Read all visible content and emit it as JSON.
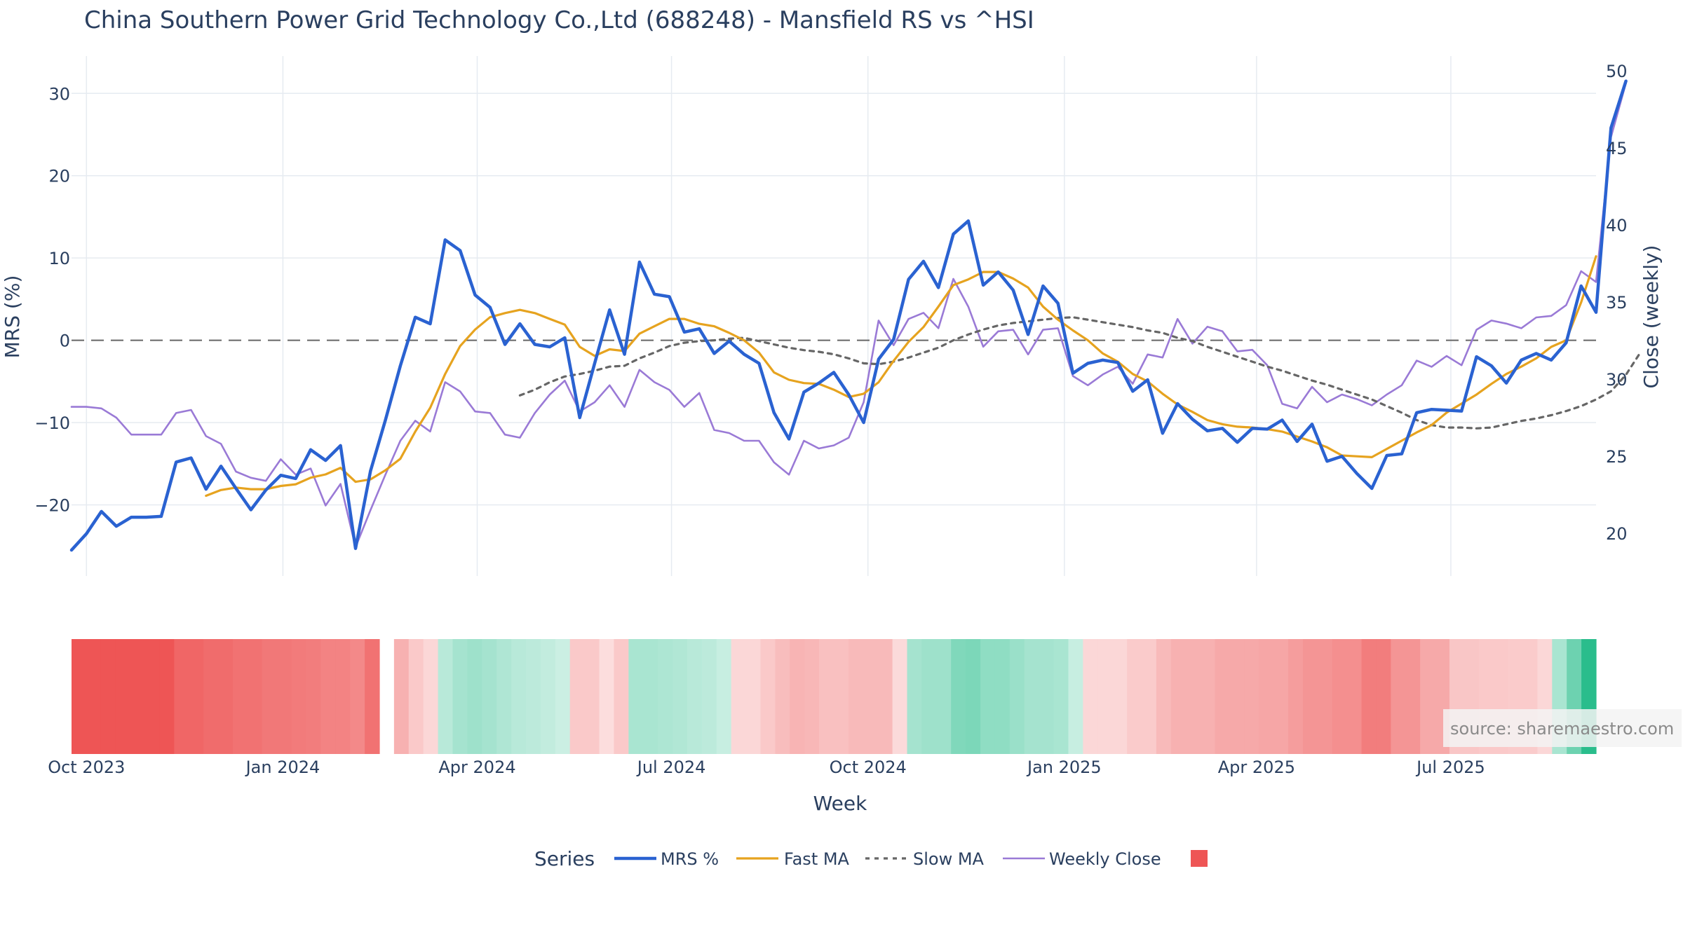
{
  "title": "China Southern Power Grid Technology Co.,Ltd (688248) - Mansfield RS vs ^HSI",
  "source_text": "source: sharemaestro.com",
  "colors": {
    "mrs": "#2a62d1",
    "fast": "#e6a31f",
    "slow": "#666666",
    "close": "#9a7ad6",
    "zero": "#666666",
    "grid": "#e6ebf1",
    "heat_neg": "#ee5555",
    "heat_pos": "#22bb88"
  },
  "chart_data": {
    "type": "line",
    "x_axis": {
      "title": "Week",
      "start": "2023-09-24",
      "end": "2025-09-07",
      "tick_labels": [
        "Oct 2023",
        "Jan 2024",
        "Apr 2024",
        "Jul 2024",
        "Oct 2024",
        "Jan 2025",
        "Apr 2025",
        "Jul 2025"
      ],
      "tick_dates": [
        "2023-10-01",
        "2024-01-01",
        "2024-04-01",
        "2024-07-01",
        "2024-10-01",
        "2025-01-01",
        "2025-04-01",
        "2025-07-01"
      ]
    },
    "y_left": {
      "title": "MRS (%)",
      "ticks": [
        30,
        20,
        10,
        0,
        -10,
        -20
      ],
      "range": [
        -28.5,
        35
      ]
    },
    "y_right": {
      "title": "Close (weekly)",
      "ticks": [
        50,
        45,
        40,
        35,
        30,
        25,
        20
      ],
      "range": [
        17.5,
        50.5
      ]
    },
    "zero_line": 0,
    "legend_title": "Series",
    "legend_position": "bottom",
    "series": [
      {
        "name": "MRS %",
        "axis": "left",
        "start_week": 0,
        "values": [
          -25.5,
          -23.5,
          -20.8,
          -22.6,
          -21.5,
          -21.5,
          -21.4,
          -14.8,
          -14.3,
          -18.1,
          -15.3,
          -18,
          -20.6,
          -18.2,
          -16.4,
          -16.8,
          -13.3,
          -14.6,
          -12.8,
          -25.3,
          -15.9,
          -9.7,
          -3.1,
          2.8,
          2,
          12.2,
          10.9,
          5.5,
          4,
          -0.5,
          2,
          -0.5,
          -0.8,
          0.3,
          -9.4,
          -2.8,
          3.7,
          -1.7,
          9.5,
          5.6,
          5.3,
          1,
          1.4,
          -1.6,
          -0.1,
          -1.7,
          -2.8,
          -8.8,
          -12,
          -6.3,
          -5.2,
          -3.9,
          -6.6,
          -10,
          -2.3,
          0.1,
          7.4,
          9.6,
          6.4,
          12.9,
          14.5,
          6.7,
          8.3,
          6.1,
          0.7,
          6.6,
          4.5,
          -4,
          -2.8,
          -2.4,
          -2.7,
          -6.2,
          -4.8,
          -11.3,
          -7.7,
          -9.6,
          -11,
          -10.7,
          -12.4,
          -10.7,
          -10.8,
          -9.7,
          -12.3,
          -10.2,
          -14.7,
          -14.1,
          -16.2,
          -18,
          -14,
          -13.8,
          -8.8,
          -8.4,
          -8.5,
          -8.6,
          -2,
          -3.1,
          -5.2,
          -2.4,
          -1.6,
          -2.4,
          -0.3,
          6.6,
          3.4,
          25.8,
          31.5
        ]
      },
      {
        "name": "Fast MA",
        "axis": "left",
        "start_week": 9,
        "values": [
          -18.9,
          -18.2,
          -17.9,
          -18.1,
          -18.1,
          -17.7,
          -17.5,
          -16.7,
          -16.3,
          -15.5,
          -17.2,
          -16.9,
          -15.8,
          -14.4,
          -11.1,
          -8.2,
          -4.1,
          -0.7,
          1.3,
          2.8,
          3.3,
          3.7,
          3.3,
          2.6,
          1.9,
          -0.8,
          -1.9,
          -1.1,
          -1.3,
          0.8,
          1.7,
          2.6,
          2.6,
          2,
          1.7,
          0.9,
          0,
          -1.5,
          -3.9,
          -4.8,
          -5.2,
          -5.3,
          -6,
          -6.9,
          -6.5,
          -5.1,
          -2.5,
          -0.2,
          1.6,
          4.1,
          6.7,
          7.4,
          8.3,
          8.3,
          7.5,
          6.4,
          4.1,
          2.5,
          1.2,
          0,
          -1.6,
          -2.6,
          -4.1,
          -5,
          -6.5,
          -7.8,
          -8.7,
          -9.7,
          -10.2,
          -10.5,
          -10.6,
          -10.8,
          -11.1,
          -11.7,
          -12.3,
          -13,
          -14,
          -14.1,
          -14.2,
          -13.2,
          -12.2,
          -11.2,
          -10.3,
          -8.8,
          -7.7,
          -6.6,
          -5.3,
          -4.1,
          -3.2,
          -2.2,
          -0.8,
          0,
          4.6,
          10.2
        ]
      },
      {
        "name": "Slow MA",
        "axis": "left",
        "start_week": 30,
        "values": [
          -6.7,
          -6,
          -5.1,
          -4.4,
          -4.1,
          -3.7,
          -3.2,
          -3.1,
          -2.2,
          -1.5,
          -0.7,
          -0.3,
          -0.1,
          0,
          0.2,
          0.3,
          -0.1,
          -0.5,
          -0.9,
          -1.2,
          -1.4,
          -1.7,
          -2.2,
          -2.8,
          -2.9,
          -2.6,
          -2.1,
          -1.5,
          -0.9,
          0,
          0.7,
          1.3,
          1.8,
          2.1,
          2.3,
          2.5,
          2.7,
          2.8,
          2.5,
          2.2,
          1.9,
          1.6,
          1.2,
          0.9,
          0.3,
          -0.1,
          -0.8,
          -1.4,
          -2,
          -2.6,
          -3.2,
          -3.7,
          -4.3,
          -4.9,
          -5.4,
          -6,
          -6.6,
          -7.2,
          -8,
          -8.8,
          -9.7,
          -10.3,
          -10.6,
          -10.6,
          -10.7,
          -10.6,
          -10.2,
          -9.8,
          -9.5,
          -9.1,
          -8.6,
          -8,
          -7.2,
          -6.2,
          -4.2,
          -1.4
        ]
      },
      {
        "name": "Weekly Close",
        "axis": "right",
        "start_week": 0,
        "values": [
          28.2,
          28.2,
          28.1,
          27.5,
          26.4,
          26.4,
          26.4,
          27.8,
          28,
          26.3,
          25.8,
          24,
          23.6,
          23.4,
          24.8,
          23.8,
          24.2,
          21.8,
          23.2,
          19.1,
          21.5,
          23.8,
          26,
          27.3,
          26.6,
          29.8,
          29.2,
          27.9,
          27.8,
          26.4,
          26.2,
          27.8,
          29,
          29.9,
          27.9,
          28.5,
          29.6,
          28.2,
          30.6,
          29.8,
          29.3,
          28.2,
          29.1,
          26.7,
          26.5,
          26,
          26,
          24.6,
          23.8,
          26,
          25.5,
          25.7,
          26.2,
          28.5,
          33.8,
          32.2,
          33.9,
          34.3,
          33.3,
          36.5,
          34.7,
          32.1,
          33.1,
          33.2,
          31.6,
          33.2,
          33.3,
          30.2,
          29.6,
          30.3,
          30.8,
          29.7,
          31.6,
          31.4,
          33.9,
          32.3,
          33.4,
          33.1,
          31.8,
          31.9,
          30.9,
          28.4,
          28.1,
          29.5,
          28.5,
          29,
          28.7,
          28.3,
          29,
          29.6,
          31.2,
          30.8,
          31.5,
          30.9,
          33.2,
          33.8,
          33.6,
          33.3,
          34,
          34.1,
          34.8,
          37,
          36.3,
          45.7,
          49.2
        ]
      }
    ]
  },
  "heatmap": {
    "caption": "",
    "start_date": "2023-09-24",
    "end_date": "2025-09-07",
    "blank_weeks": [
      21
    ],
    "values": [
      -100,
      -100,
      -100,
      -100,
      -100,
      -100,
      -100,
      -88,
      -88,
      -84,
      -84,
      -80,
      -80,
      -76,
      -76,
      -74,
      -72,
      -68,
      -68,
      -64,
      -80,
      null,
      -36,
      -20,
      -10,
      20,
      30,
      34,
      30,
      25,
      20,
      18,
      15,
      10,
      -20,
      -20,
      -6,
      -20,
      28,
      28,
      26,
      24,
      20,
      18,
      12,
      -10,
      -10,
      -20,
      -28,
      -34,
      -32,
      -26,
      -26,
      -30,
      -30,
      -30,
      -8,
      30,
      34,
      34,
      50,
      52,
      42,
      42,
      36,
      30,
      30,
      28,
      12,
      -10,
      -10,
      -10,
      -18,
      -18,
      -30,
      -36,
      -36,
      -36,
      -42,
      -42,
      -42,
      -44,
      -44,
      -50,
      -56,
      -56,
      -60,
      -60,
      -72,
      -72,
      -56,
      -56,
      -42,
      -42,
      -22,
      -22,
      -20,
      -20,
      -18,
      -18,
      -10,
      28,
      60,
      96
    ]
  },
  "legend": {
    "title": "Series",
    "items": [
      "MRS %",
      "Fast MA",
      "Slow MA",
      "Weekly Close"
    ]
  }
}
